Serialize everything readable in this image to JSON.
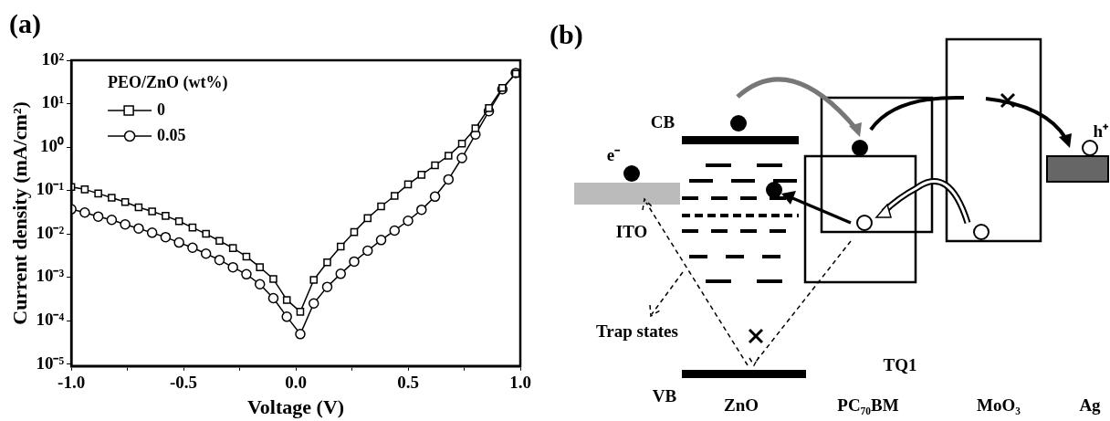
{
  "chart_data": [
    {
      "type": "line",
      "title": "(a)",
      "xlabel": "Voltage (V)",
      "ylabel": "Current density (mA/cm²)",
      "legend_title": "PEO/ZnO (wt%)",
      "legend": "top left",
      "log": "y",
      "grid": false,
      "x": [
        -1,
        -0.94,
        -0.88,
        -0.82,
        -0.76,
        -0.7,
        -0.64,
        -0.58,
        -0.52,
        -0.46,
        -0.4,
        -0.34,
        -0.28,
        -0.22,
        -0.16,
        -0.1,
        -0.04,
        0.02,
        0.08,
        0.14,
        0.2,
        0.26,
        0.32,
        0.38,
        0.44,
        0.5,
        0.56,
        0.62,
        0.68,
        0.74,
        0.8,
        0.86,
        0.92,
        0.98
      ],
      "series": [
        {
          "name": "0",
          "color": "#000000",
          "marker": "square",
          "values": [
            0.12,
            0.106,
            0.085,
            0.068,
            0.054,
            0.041,
            0.033,
            0.026,
            0.0195,
            0.014,
            0.01,
            0.0069,
            0.0047,
            0.003,
            0.0017,
            0.00091,
            0.0003,
            0.00016,
            0.00087,
            0.0022,
            0.0051,
            0.011,
            0.023,
            0.043,
            0.075,
            0.138,
            0.23,
            0.38,
            0.63,
            1.2,
            2.7,
            7.9,
            23,
            49
          ]
        },
        {
          "name": "0.05",
          "color": "#000000",
          "marker": "circle",
          "values": [
            0.037,
            0.031,
            0.025,
            0.021,
            0.0165,
            0.0133,
            0.0106,
            0.0084,
            0.0063,
            0.0048,
            0.0035,
            0.0025,
            0.0017,
            0.00117,
            0.00069,
            0.00033,
            0.000123,
            4.9e-05,
            0.00025,
            0.0006,
            0.0012,
            0.0023,
            0.0041,
            0.0072,
            0.0119,
            0.02,
            0.036,
            0.072,
            0.18,
            0.56,
            1.95,
            6.7,
            21.5,
            51
          ]
        }
      ],
      "xlim": [
        -1,
        1
      ],
      "xticks": [
        {
          "value": -1,
          "label": "-1.0"
        },
        {
          "value": -0.75,
          "label": null
        },
        {
          "value": -0.5,
          "label": "-0.5"
        },
        {
          "value": -0.25,
          "label": null
        },
        {
          "value": 0,
          "label": "0.0"
        },
        {
          "value": 0.25,
          "label": null
        },
        {
          "value": 0.5,
          "label": "0.5"
        },
        {
          "value": 0.75,
          "label": null
        },
        {
          "value": 1,
          "label": "1.0"
        }
      ],
      "ylim": [
        9e-06,
        100
      ],
      "yticks": [
        {
          "value": 1e-05,
          "label": "10⁻⁵"
        },
        {
          "value": 0.0001,
          "label": "10⁻⁴"
        },
        {
          "value": 0.001,
          "label": "10⁻³"
        },
        {
          "value": 0.01,
          "label": "10⁻²"
        },
        {
          "value": 0.1,
          "label": "10⁻¹"
        },
        {
          "value": 1,
          "label": "10⁰"
        },
        {
          "value": 10,
          "label": "10¹"
        },
        {
          "value": 100,
          "label": "10²"
        }
      ]
    },
    {
      "type": "other",
      "title": "(b)",
      "annotations": [
        "CB",
        "e⁻",
        "ITO",
        "Trap states",
        "VB",
        "ZnO",
        "PC₇₀BM",
        "TQ1",
        "MoO₃",
        "Ag",
        "h⁺"
      ]
    }
  ]
}
